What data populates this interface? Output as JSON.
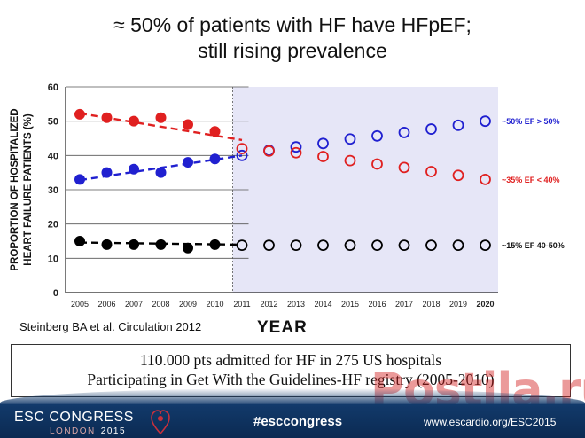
{
  "slide": {
    "title_line1": "≈ 50% of patients with HF have HFpEF;",
    "title_line2": "still rising prevalence",
    "citation": "Steinberg BA et al. Circulation 2012",
    "info_line1": "110.000 pts admitted for HF in 275 US hospitals",
    "info_line2": "Participating in Get With the Guidelines-HF registry (2005-2010)"
  },
  "footer": {
    "brand": "ESC CONGRESS",
    "location": "LONDON",
    "year": "2015",
    "hashtag": "#esccongress",
    "url": "www.escardio.org/ESC2015"
  },
  "watermark": "Postila.ru",
  "colors": {
    "red": "#e02020",
    "blue": "#2020d0",
    "black": "#000000",
    "projection_bg": "#e6e6f7"
  },
  "chart_data": {
    "type": "scatter",
    "title": "",
    "xlabel": "YEAR",
    "ylabel": "PROPORTION OF HOSPITALIZED HEART FAILURE PATIENTS (%)",
    "ylim": [
      0,
      60
    ],
    "yticks": [
      0,
      10,
      20,
      30,
      40,
      50,
      60
    ],
    "x": [
      "2005",
      "2006",
      "2007",
      "2008",
      "2009",
      "2010",
      "2011",
      "2012",
      "2013",
      "2014",
      "2015",
      "2016",
      "2017",
      "2018",
      "2019",
      "2020"
    ],
    "observed_years": [
      "2005",
      "2006",
      "2007",
      "2008",
      "2009",
      "2010"
    ],
    "projected_years": [
      "2011",
      "2012",
      "2013",
      "2014",
      "2015",
      "2016",
      "2017",
      "2018",
      "2019",
      "2020"
    ],
    "series": [
      {
        "key": "ef_gt_50",
        "color": "#2020d0",
        "observed": [
          33,
          35,
          36,
          35,
          38,
          39
        ],
        "projected": [
          40,
          41.5,
          42.5,
          43.5,
          44.8,
          45.7,
          46.7,
          47.7,
          48.8,
          50
        ],
        "trend": [
          [
            2005,
            32.8
          ],
          [
            2011,
            40
          ]
        ],
        "label": "~50% EF > 50%"
      },
      {
        "key": "ef_lt_40",
        "color": "#e02020",
        "observed": [
          52,
          51,
          50,
          51,
          49,
          47
        ],
        "projected": [
          42,
          41.3,
          40.8,
          39.7,
          38.5,
          37.5,
          36.5,
          35.3,
          34.2,
          33
        ],
        "trend": [
          [
            2005,
            52.3
          ],
          [
            2011,
            44.5
          ]
        ],
        "label": "~35% EF < 40%"
      },
      {
        "key": "ef_40_50",
        "color": "#000000",
        "observed": [
          15,
          14,
          14,
          14,
          13,
          14
        ],
        "projected": [
          13.8,
          13.8,
          13.8,
          13.8,
          13.8,
          13.8,
          13.8,
          13.8,
          13.8,
          13.8
        ],
        "trend": [
          [
            2005,
            14.6
          ],
          [
            2010.8,
            14
          ]
        ],
        "label": "~15% EF 40-50%"
      }
    ],
    "grid": "horizontal, observed period only",
    "legend": "inline labels at right"
  }
}
